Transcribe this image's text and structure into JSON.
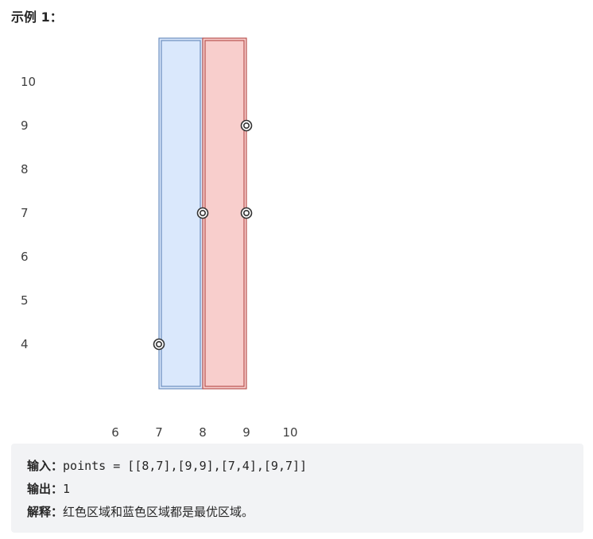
{
  "example_title": "示例 1：",
  "chart_data": {
    "type": "scatter",
    "x_ticks": [
      6,
      7,
      8,
      9,
      10
    ],
    "y_ticks": [
      4,
      5,
      6,
      7,
      8,
      9,
      10
    ],
    "points": [
      {
        "x": 8,
        "y": 7
      },
      {
        "x": 9,
        "y": 9
      },
      {
        "x": 7,
        "y": 4
      },
      {
        "x": 9,
        "y": 7
      }
    ],
    "regions": [
      {
        "x_from": 7,
        "x_to": 8,
        "fill": "#dae8fc",
        "stroke": "#6c8ebf"
      },
      {
        "x_from": 8,
        "x_to": 9,
        "fill": "#f8cecc",
        "stroke": "#b85450"
      }
    ]
  },
  "code": {
    "input_label": "输入：",
    "input_value": "points = [[8,7],[9,9],[7,4],[9,7]]",
    "output_label": "输出：",
    "output_value": "1",
    "explain_label": "解释：",
    "explain_value": "红色区域和蓝色区域都是最优区域。"
  }
}
